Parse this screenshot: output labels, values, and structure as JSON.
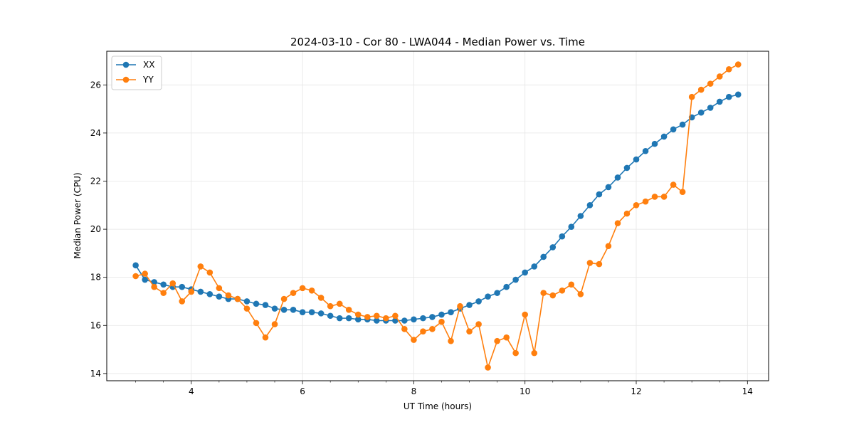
{
  "chart_data": {
    "type": "line",
    "title": "2024-03-10 - Cor 80 - LWA044 - Median Power vs. Time",
    "xlabel": "UT Time (hours)",
    "ylabel": "Median Power (CPU)",
    "xlim": [
      2.48,
      14.38
    ],
    "ylim": [
      13.7,
      27.4
    ],
    "xticks": [
      4,
      6,
      8,
      10,
      12,
      14
    ],
    "yticks": [
      14,
      16,
      18,
      20,
      22,
      24,
      26
    ],
    "xtick_labels": [
      "4",
      "6",
      "8",
      "10",
      "12",
      "14"
    ],
    "ytick_labels": [
      "14",
      "16",
      "18",
      "20",
      "22",
      "24",
      "26"
    ],
    "grid": true,
    "legend_position": "top-left",
    "x": [
      3.0,
      3.167,
      3.333,
      3.5,
      3.667,
      3.833,
      4.0,
      4.167,
      4.333,
      4.5,
      4.667,
      4.833,
      5.0,
      5.167,
      5.333,
      5.5,
      5.667,
      5.833,
      6.0,
      6.167,
      6.333,
      6.5,
      6.667,
      6.833,
      7.0,
      7.167,
      7.333,
      7.5,
      7.667,
      7.833,
      8.0,
      8.167,
      8.333,
      8.5,
      8.667,
      8.833,
      9.0,
      9.167,
      9.333,
      9.5,
      9.667,
      9.833,
      10.0,
      10.167,
      10.333,
      10.5,
      10.667,
      10.833,
      11.0,
      11.167,
      11.333,
      11.5,
      11.667,
      11.833,
      12.0,
      12.167,
      12.333,
      12.5,
      12.667,
      12.833,
      13.0,
      13.167,
      13.333,
      13.5,
      13.667,
      13.833
    ],
    "series": [
      {
        "name": "XX",
        "color": "#1f77b4",
        "values": [
          18.5,
          17.9,
          17.8,
          17.7,
          17.6,
          17.6,
          17.5,
          17.4,
          17.3,
          17.2,
          17.1,
          17.1,
          17.0,
          16.9,
          16.85,
          16.7,
          16.65,
          16.65,
          16.55,
          16.55,
          16.5,
          16.4,
          16.3,
          16.3,
          16.25,
          16.25,
          16.2,
          16.2,
          16.2,
          16.2,
          16.25,
          16.3,
          16.35,
          16.45,
          16.55,
          16.7,
          16.85,
          17.0,
          17.2,
          17.35,
          17.6,
          17.9,
          18.2,
          18.45,
          18.85,
          19.25,
          19.7,
          20.1,
          20.55,
          21.0,
          21.45,
          21.75,
          22.15,
          22.55,
          22.9,
          23.25,
          23.55,
          23.85,
          24.15,
          24.35,
          24.65,
          24.85,
          25.05,
          25.3,
          25.5,
          25.6
        ]
      },
      {
        "name": "YY",
        "color": "#ff7f0e",
        "values": [
          18.05,
          18.15,
          17.6,
          17.35,
          17.75,
          17.0,
          17.4,
          18.45,
          18.2,
          17.55,
          17.25,
          17.1,
          16.7,
          16.1,
          15.5,
          16.05,
          17.1,
          17.35,
          17.55,
          17.45,
          17.15,
          16.8,
          16.9,
          16.65,
          16.45,
          16.35,
          16.4,
          16.3,
          16.4,
          15.85,
          15.4,
          15.75,
          15.85,
          16.15,
          15.35,
          16.8,
          15.75,
          16.05,
          14.25,
          15.35,
          15.5,
          14.85,
          16.45,
          14.85,
          17.35,
          17.25,
          17.45,
          17.7,
          17.3,
          18.6,
          18.55,
          19.3,
          20.25,
          20.65,
          21.0,
          21.15,
          21.35,
          21.35,
          21.85,
          21.55,
          25.5,
          25.8,
          26.05,
          26.35,
          26.65,
          26.85
        ]
      }
    ]
  },
  "style": {
    "grid_color": "#e6e6e6",
    "axis_color": "#000000"
  }
}
